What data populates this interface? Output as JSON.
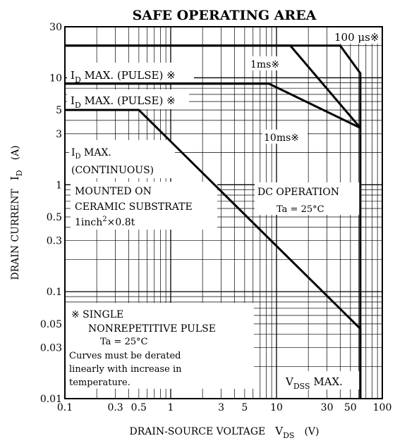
{
  "chart_data": {
    "type": "line",
    "title": "SAFE OPERATING AREA",
    "xlabel": {
      "main": "DRAIN-SOURCE VOLTAGE",
      "symbol": "V",
      "sub": "DS",
      "unit": "(V)"
    },
    "ylabel": {
      "main": "DRAIN CURRENT",
      "symbol": "I",
      "sub": "D",
      "unit": "(A)"
    },
    "x_scale": "log",
    "y_scale": "log",
    "xlim": [
      0.1,
      100
    ],
    "ylim": [
      0.01,
      30
    ],
    "x_ticks": [
      {
        "v": 0.1,
        "label": "0.1"
      },
      {
        "v": 0.3,
        "label": "0.3"
      },
      {
        "v": 0.5,
        "label": "0.5"
      },
      {
        "v": 1,
        "label": "1"
      },
      {
        "v": 3,
        "label": "3"
      },
      {
        "v": 5,
        "label": "5"
      },
      {
        "v": 10,
        "label": "10"
      },
      {
        "v": 30,
        "label": "30"
      },
      {
        "v": 50,
        "label": "50"
      },
      {
        "v": 100,
        "label": "100"
      }
    ],
    "y_ticks": [
      {
        "v": 0.01,
        "label": "0.01"
      },
      {
        "v": 0.03,
        "label": "0.03"
      },
      {
        "v": 0.05,
        "label": "0.05"
      },
      {
        "v": 0.1,
        "label": "0.1"
      },
      {
        "v": 0.3,
        "label": "0.3"
      },
      {
        "v": 0.5,
        "label": "0.5"
      },
      {
        "v": 1,
        "label": "1"
      },
      {
        "v": 3,
        "label": "3"
      },
      {
        "v": 5,
        "label": "5"
      },
      {
        "v": 10,
        "label": "10"
      },
      {
        "v": 30,
        "label": "30"
      }
    ],
    "grid": true,
    "series": [
      {
        "key": "dc",
        "x": [
          0.1,
          0.5,
          62,
          62
        ],
        "y": [
          5,
          5,
          0.045,
          0.01
        ]
      },
      {
        "key": "ms10",
        "x": [
          0.1,
          8.5,
          62
        ],
        "y": [
          8.8,
          8.8,
          3.4
        ]
      },
      {
        "key": "ms1",
        "x": [
          0.1,
          13.5,
          62
        ],
        "y": [
          20,
          20,
          3.4
        ]
      },
      {
        "key": "us100",
        "x": [
          0.1,
          40,
          62,
          62
        ],
        "y": [
          20,
          20,
          11,
          0.01
        ]
      }
    ],
    "annotations": {
      "us100": "100 μs※",
      "ms1": "1ms※",
      "ms10": "10ms※",
      "id_pulse_1": {
        "prefix": "I",
        "sub": "D",
        "rest": " MAX. (PULSE) ※"
      },
      "id_pulse_2": {
        "prefix": "I",
        "sub": "D",
        "rest": " MAX. (PULSE) ※"
      },
      "id_cont_1": {
        "prefix": "I",
        "sub": "D",
        "rest": " MAX."
      },
      "id_cont_2": "(CONTINUOUS)",
      "mounted_1": "MOUNTED ON",
      "mounted_2": "CERAMIC SUBSTRATE",
      "mounted_3": {
        "pre": "1inch",
        "sup": "2",
        "post": "×0.8t"
      },
      "dc_op": "DC OPERATION",
      "ta_1": "Ta = 25°C",
      "note_1": "※ SINGLE",
      "note_2": "NONREPETITIVE PULSE",
      "ta_2": "Ta = 25°C",
      "note_3": "Curves must be derated",
      "note_4": "linearly with increase in",
      "note_5": "temperature.",
      "vdss": {
        "prefix": "V",
        "sub": "DSS",
        "rest": " MAX."
      }
    }
  }
}
